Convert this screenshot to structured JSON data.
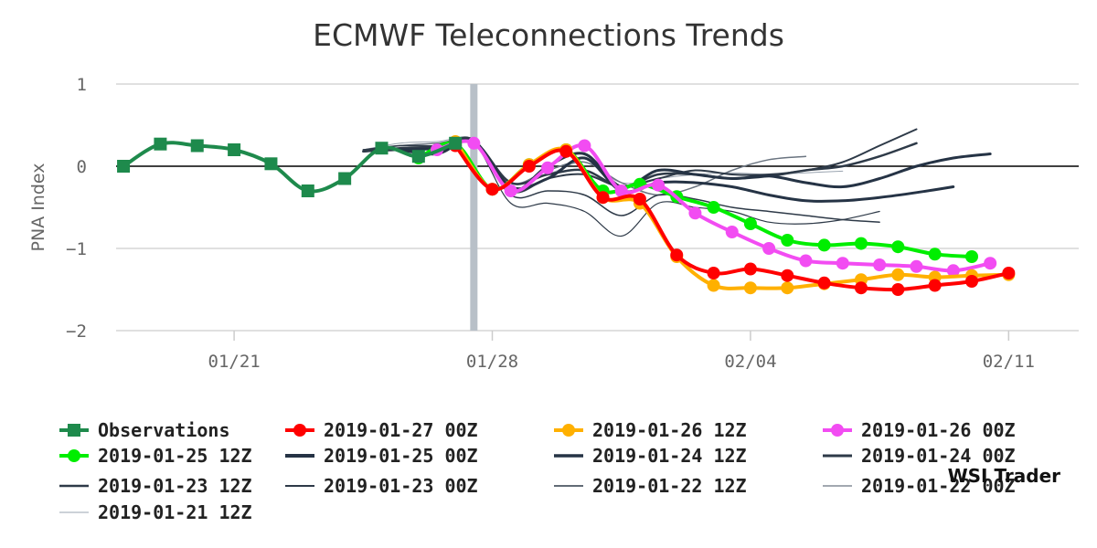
{
  "chart_data": {
    "type": "line",
    "title": "ECMWF Teleconnections Trends",
    "ylabel": "PNA Index",
    "xlabel": "",
    "xlim": [
      -3.2,
      22.9
    ],
    "ylim": [
      -2,
      1
    ],
    "yticks": [
      1,
      0,
      -1,
      -2
    ],
    "ytick_labels": [
      "1",
      "0",
      "−1",
      "−2"
    ],
    "xticks": [
      0,
      7,
      14,
      21
    ],
    "xtick_labels": [
      "01/21",
      "01/28",
      "02/04",
      "02/11"
    ],
    "x_unit": "days since 01/21",
    "current_date_marker": 6.5,
    "zero_line": true,
    "grid": true,
    "legend_position": "bottom",
    "brand": "WSI Trader",
    "series": [
      {
        "name": "2019-01-21 12Z",
        "color": "#9aa4b0",
        "width": 1,
        "marker": false,
        "x": [
          3.5,
          4.5,
          5.5,
          6.5,
          7.5,
          8.5,
          9.5,
          10.5,
          11.5,
          12.5,
          13.5,
          14.5,
          15.5,
          16.5
        ],
        "y": [
          0.2,
          0.28,
          0.3,
          0.32,
          -0.2,
          -0.1,
          0.05,
          -0.2,
          -0.15,
          -0.1,
          -0.08,
          -0.1,
          -0.08,
          -0.06
        ]
      },
      {
        "name": "2019-01-22 00Z",
        "color": "#6a7480",
        "width": 1.5,
        "marker": false,
        "x": [
          3.5,
          4.5,
          5.5,
          6.5,
          7.5,
          8.5,
          9.5,
          10.5,
          11.5,
          12.5,
          13.5,
          14.5,
          15.5
        ],
        "y": [
          0.2,
          0.25,
          0.28,
          0.3,
          -0.2,
          -0.05,
          0.05,
          -0.2,
          -0.35,
          -0.25,
          -0.05,
          0.08,
          0.12
        ]
      },
      {
        "name": "2019-01-22 12Z",
        "color": "#2e3a48",
        "width": 1.2,
        "marker": false,
        "x": [
          3.5,
          4.5,
          5.5,
          6.5,
          7.5,
          8.5,
          9.5,
          10.5,
          11.5,
          12.5,
          13.5,
          14.5,
          15.5,
          16.5,
          17.5
        ],
        "y": [
          0.2,
          0.22,
          0.24,
          0.28,
          -0.45,
          -0.45,
          -0.55,
          -0.85,
          -0.45,
          -0.5,
          -0.55,
          -0.68,
          -0.7,
          -0.65,
          -0.55
        ]
      },
      {
        "name": "2019-01-23 00Z",
        "color": "#2e3a48",
        "width": 1.5,
        "marker": false,
        "x": [
          3.5,
          4.5,
          5.5,
          6.5,
          7.5,
          8.5,
          9.5,
          10.5,
          11.5,
          12.5,
          13.5,
          14.5,
          15.5,
          16.5,
          17.5
        ],
        "y": [
          0.2,
          0.25,
          0.25,
          0.3,
          -0.35,
          -0.3,
          -0.35,
          -0.6,
          -0.35,
          -0.4,
          -0.5,
          -0.55,
          -0.6,
          -0.65,
          -0.68
        ]
      },
      {
        "name": "2019-01-23 12Z",
        "color": "#2e3a48",
        "width": 2,
        "marker": false,
        "x": [
          3.5,
          4.5,
          5.5,
          6.5,
          7.5,
          8.5,
          9.5,
          10.5,
          11.5,
          12.5,
          13.5,
          14.5,
          15.5,
          16.5,
          17.5,
          18.5
        ],
        "y": [
          0.18,
          0.2,
          0.25,
          0.32,
          -0.3,
          -0.15,
          -0.1,
          -0.25,
          -0.15,
          -0.05,
          -0.1,
          -0.1,
          -0.05,
          0.05,
          0.25,
          0.45
        ]
      },
      {
        "name": "2019-01-24 00Z",
        "color": "#2e3a48",
        "width": 2.5,
        "marker": false,
        "x": [
          3.5,
          4.5,
          5.5,
          6.5,
          7.5,
          8.5,
          9.5,
          10.5,
          11.5,
          12.5,
          13.5,
          14.5,
          15.5,
          16.5,
          17.5,
          18.5
        ],
        "y": [
          0.18,
          0.22,
          0.24,
          0.3,
          -0.2,
          -0.1,
          -0.05,
          -0.25,
          -0.1,
          -0.1,
          -0.15,
          -0.12,
          -0.05,
          0,
          0.12,
          0.28
        ]
      },
      {
        "name": "2019-01-24 12Z",
        "color": "#253345",
        "width": 3,
        "marker": false,
        "x": [
          4.5,
          5.5,
          6.5,
          7.5,
          8.5,
          9.5,
          10.5,
          11.5,
          12.5,
          13.5,
          14.5,
          15.5,
          16.5,
          17.5,
          18.5,
          19.5
        ],
        "y": [
          0.2,
          0.22,
          0.3,
          -0.25,
          -0.15,
          0.1,
          -0.3,
          -0.2,
          -0.2,
          -0.25,
          -0.35,
          -0.42,
          -0.42,
          -0.38,
          -0.32,
          -0.25
        ]
      },
      {
        "name": "2019-01-25 00Z",
        "color": "#253345",
        "width": 3,
        "marker": false,
        "x": [
          4.5,
          5.5,
          6.5,
          7.5,
          8.5,
          9.5,
          10.5,
          11.5,
          12.5,
          13.5,
          14.5,
          15.5,
          16.5,
          17.5,
          18.5,
          19.5,
          20.5
        ],
        "y": [
          0.2,
          0.15,
          0.3,
          -0.3,
          0,
          0.15,
          -0.25,
          -0.05,
          -0.1,
          -0.15,
          -0.12,
          -0.2,
          -0.25,
          -0.15,
          0,
          0.1,
          0.15
        ]
      },
      {
        "name": "2019-01-25 12Z",
        "color": "#00ee00",
        "width": 4,
        "marker": true,
        "x": [
          5,
          6,
          7,
          8,
          9,
          10,
          11,
          12,
          13,
          14,
          15,
          16,
          17,
          18,
          19,
          20
        ],
        "y": [
          0.1,
          0.27,
          -0.28,
          0.02,
          0.2,
          -0.3,
          -0.22,
          -0.37,
          -0.5,
          -0.7,
          -0.9,
          -0.96,
          -0.94,
          -0.98,
          -1.07,
          -1.1
        ]
      },
      {
        "name": "2019-01-26 00Z",
        "color": "#f24cf2",
        "width": 4,
        "marker": true,
        "x": [
          5.5,
          6.5,
          7.5,
          8.5,
          9.5,
          10.5,
          11.5,
          12.5,
          13.5,
          14.5,
          15.5,
          16.5,
          17.5,
          18.5,
          19.5,
          20.5
        ],
        "y": [
          0.2,
          0.28,
          -0.3,
          -0.02,
          0.25,
          -0.3,
          -0.23,
          -0.57,
          -0.8,
          -1,
          -1.15,
          -1.18,
          -1.2,
          -1.22,
          -1.27,
          -1.18
        ]
      },
      {
        "name": "2019-01-26 12Z",
        "color": "#ffb000",
        "width": 4,
        "marker": true,
        "x": [
          6,
          7,
          8,
          9,
          10,
          11,
          12,
          13,
          14,
          15,
          16,
          17,
          18,
          19,
          20,
          21
        ],
        "y": [
          0.3,
          -0.28,
          0.02,
          0.2,
          -0.38,
          -0.45,
          -1.1,
          -1.45,
          -1.48,
          -1.48,
          -1.43,
          -1.38,
          -1.32,
          -1.35,
          -1.33,
          -1.32
        ]
      },
      {
        "name": "2019-01-27 00Z",
        "color": "#ff0000",
        "width": 4,
        "marker": true,
        "x": [
          6,
          7,
          8,
          9,
          10,
          11,
          12,
          13,
          14,
          15,
          16,
          17,
          18,
          19,
          20,
          21
        ],
        "y": [
          0.25,
          -0.28,
          0,
          0.18,
          -0.38,
          -0.4,
          -1.08,
          -1.3,
          -1.25,
          -1.33,
          -1.42,
          -1.48,
          -1.5,
          -1.45,
          -1.4,
          -1.3
        ]
      },
      {
        "name": "Observations",
        "color": "#1e8a4c",
        "width": 4,
        "marker": "square",
        "x": [
          -3,
          -2,
          -1,
          0,
          1,
          2,
          3,
          4,
          5,
          6
        ],
        "y": [
          0,
          0.27,
          0.25,
          0.2,
          0.03,
          -0.3,
          -0.15,
          0.22,
          0.12,
          0.28
        ]
      }
    ],
    "legend": [
      {
        "label": "Observations",
        "color": "#1e8a4c",
        "type": "square"
      },
      {
        "label": "2019-01-27 00Z",
        "color": "#ff0000",
        "type": "circle"
      },
      {
        "label": "2019-01-26 12Z",
        "color": "#ffb000",
        "type": "circle"
      },
      {
        "label": "2019-01-26 00Z",
        "color": "#f24cf2",
        "type": "circle"
      },
      {
        "label": "2019-01-25 12Z",
        "color": "#00ee00",
        "type": "circle"
      },
      {
        "label": "2019-01-25 00Z",
        "color": "#253345",
        "type": "line",
        "w": 4
      },
      {
        "label": "2019-01-24 12Z",
        "color": "#253345",
        "type": "line",
        "w": 3.5
      },
      {
        "label": "2019-01-24 00Z",
        "color": "#2e3a48",
        "type": "line",
        "w": 3
      },
      {
        "label": "2019-01-23 12Z",
        "color": "#2e3a48",
        "type": "line",
        "w": 2.5
      },
      {
        "label": "2019-01-23 00Z",
        "color": "#2e3a48",
        "type": "line",
        "w": 2
      },
      {
        "label": "2019-01-22 12Z",
        "color": "#2e3a48",
        "type": "line",
        "w": 1.6
      },
      {
        "label": "2019-01-22 00Z",
        "color": "#6a7480",
        "type": "line",
        "w": 1.3
      },
      {
        "label": "2019-01-21 12Z",
        "color": "#9aa4b0",
        "type": "line",
        "w": 1
      }
    ]
  }
}
